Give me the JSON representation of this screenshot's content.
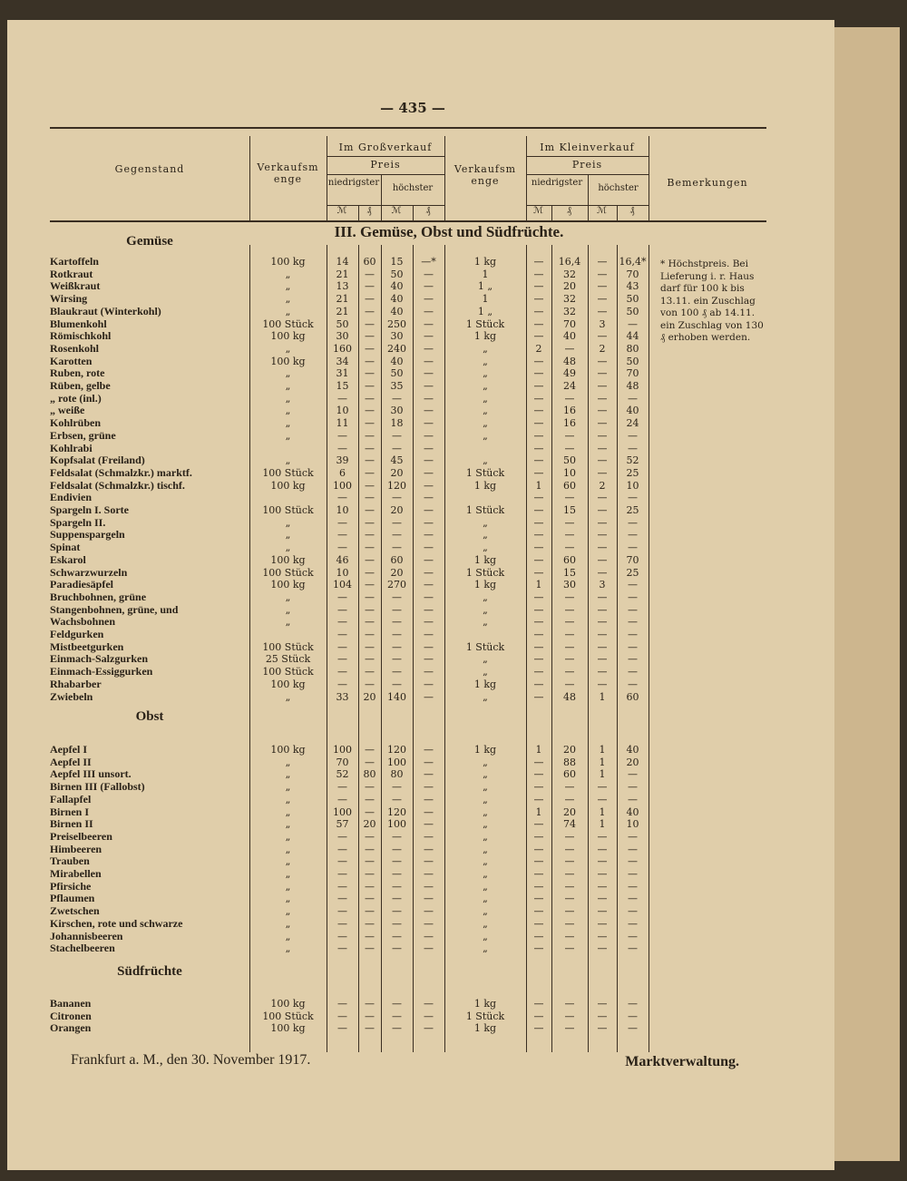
{
  "header": {
    "page_number": "— 435 —",
    "item": "Gegenstand",
    "quantity": "Verkaufsmenge",
    "wholesale": "Im Großverkauf",
    "retail": "Im Kleinverkauf",
    "price": "Preis",
    "lowest": "niedrigster",
    "highest": "höchster",
    "mk": "ℳ",
    "pf": "₰",
    "remarks": "Bemerkungen"
  },
  "title": "III. Gemüse, Obst und Südfrüchte.",
  "remarks": "* Höchstpreis. Bei Lieferung i. r. Haus darf für 100 k bis 13.11. ein Zuschlag von 100 ₰ ab 14.11. ein Zuschlag von 130 ₰ erhoben werden.",
  "sections": [
    {
      "title": "Gemüse",
      "rows": [
        {
          "name": "Kartoffeln",
          "cells": [
            "100 kg",
            "14",
            "60",
            "15",
            "—*",
            "1 kg",
            "—",
            "16,4",
            "—",
            "16,4*"
          ]
        },
        {
          "name": "Rotkraut",
          "cells": [
            "„",
            "21",
            "—",
            "50",
            "—",
            "1",
            "—",
            "32",
            "—",
            "70"
          ]
        },
        {
          "name": "Weißkraut",
          "cells": [
            "„",
            "13",
            "—",
            "40",
            "—",
            "1 „",
            "—",
            "20",
            "—",
            "43"
          ]
        },
        {
          "name": "Wirsing",
          "cells": [
            "„",
            "21",
            "—",
            "40",
            "—",
            "1",
            "—",
            "32",
            "—",
            "50"
          ]
        },
        {
          "name": "Blaukraut (Winterkohl)",
          "cells": [
            "„",
            "21",
            "—",
            "40",
            "—",
            "1 „",
            "—",
            "32",
            "—",
            "50"
          ]
        },
        {
          "name": "Blumenkohl",
          "cells": [
            "100 Stück",
            "50",
            "—",
            "250",
            "—",
            "1 Stück",
            "—",
            "70",
            "3",
            "—"
          ]
        },
        {
          "name": "Römischkohl",
          "cells": [
            "100 kg",
            "30",
            "—",
            "30",
            "—",
            "1 kg",
            "—",
            "40",
            "—",
            "44"
          ]
        },
        {
          "name": "Rosenkohl",
          "cells": [
            "„",
            "160",
            "—",
            "240",
            "—",
            "„",
            "2",
            "—",
            "2",
            "80"
          ]
        },
        {
          "name": "Karotten",
          "cells": [
            "100 kg",
            "34",
            "—",
            "40",
            "—",
            "„",
            "—",
            "48",
            "—",
            "50"
          ]
        },
        {
          "name": "Ruben, rote",
          "cells": [
            "„",
            "31",
            "—",
            "50",
            "—",
            "„",
            "—",
            "49",
            "—",
            "70"
          ]
        },
        {
          "name": "Rüben, gelbe",
          "cells": [
            "„",
            "15",
            "—",
            "35",
            "—",
            "„",
            "—",
            "24",
            "—",
            "48"
          ]
        },
        {
          "name": "„ rote (inl.)",
          "cells": [
            "„",
            "—",
            "—",
            "—",
            "—",
            "„",
            "—",
            "—",
            "—",
            "—"
          ]
        },
        {
          "name": "„ weiße",
          "cells": [
            "„",
            "10",
            "—",
            "30",
            "—",
            "„",
            "—",
            "16",
            "—",
            "40"
          ]
        },
        {
          "name": "Kohlrüben",
          "cells": [
            "„",
            "11",
            "—",
            "18",
            "—",
            "„",
            "—",
            "16",
            "—",
            "24"
          ]
        },
        {
          "name": "Erbsen, grüne",
          "cells": [
            "„",
            "—",
            "—",
            "—",
            "—",
            "„",
            "—",
            "—",
            "—",
            "—"
          ]
        },
        {
          "name": "Kohlrabi",
          "cells": [
            null,
            "—",
            "—",
            "—",
            "—",
            null,
            "—",
            "—",
            "—",
            "—"
          ]
        },
        {
          "name": "Kopfsalat (Freiland)",
          "cells": [
            "„",
            "39",
            "—",
            "45",
            "—",
            "„",
            "—",
            "50",
            "—",
            "52"
          ]
        },
        {
          "name": "Feldsalat (Schmalzkr.) marktf.",
          "cells": [
            "100 Stück",
            "6",
            "—",
            "20",
            "—",
            "1 Stück",
            "—",
            "10",
            "—",
            "25"
          ]
        },
        {
          "name": "Feldsalat (Schmalzkr.) tischf.",
          "cells": [
            "100 kg",
            "100",
            "—",
            "120",
            "—",
            "1 kg",
            "1",
            "60",
            "2",
            "10"
          ]
        },
        {
          "name": "Endivien",
          "cells": [
            null,
            "—",
            "—",
            "—",
            "—",
            null,
            "—",
            "—",
            "—",
            "—"
          ]
        },
        {
          "name": "Spargeln I. Sorte",
          "cells": [
            "100 Stück",
            "10",
            "—",
            "20",
            "—",
            "1 Stück",
            "—",
            "15",
            "—",
            "25"
          ]
        },
        {
          "name": "Spargeln II.",
          "cells": [
            "„",
            "—",
            "—",
            "—",
            "—",
            "„",
            "—",
            "—",
            "—",
            "—"
          ]
        },
        {
          "name": "Suppenspargeln",
          "cells": [
            "„",
            "—",
            "—",
            "—",
            "—",
            "„",
            "—",
            "—",
            "—",
            "—"
          ]
        },
        {
          "name": "Spinat",
          "cells": [
            "„",
            "—",
            "—",
            "—",
            "—",
            "„",
            "—",
            "—",
            "—",
            "—"
          ]
        },
        {
          "name": "Eskarol",
          "cells": [
            "100 kg",
            "46",
            "—",
            "60",
            "—",
            "1 kg",
            "—",
            "60",
            "—",
            "70"
          ]
        },
        {
          "name": "Schwarzwurzeln",
          "cells": [
            "100 Stück",
            "10",
            "—",
            "20",
            "—",
            "1 Stück",
            "—",
            "15",
            "—",
            "25"
          ]
        },
        {
          "name": "Paradiesäpfel",
          "cells": [
            "100 kg",
            "104",
            "—",
            "270",
            "—",
            "1 kg",
            "1",
            "30",
            "3",
            "—"
          ]
        },
        {
          "name": "Bruchbohnen, grüne",
          "cells": [
            "„",
            "—",
            "—",
            "—",
            "—",
            "„",
            "—",
            "—",
            "—",
            "—"
          ]
        },
        {
          "name": "Stangenbohnen, grüne, und",
          "cells": [
            "„",
            "—",
            "—",
            "—",
            "—",
            "„",
            "—",
            "—",
            "—",
            "—"
          ]
        },
        {
          "name": "Wachsbohnen",
          "cells": [
            "„",
            "—",
            "—",
            "—",
            "—",
            "„",
            "—",
            "—",
            "—",
            "—"
          ]
        },
        {
          "name": "Feldgurken",
          "cells": [
            null,
            "—",
            "—",
            "—",
            "—",
            null,
            "—",
            "—",
            "—",
            "—"
          ]
        },
        {
          "name": "Mistbeetgurken",
          "cells": [
            "100 Stück",
            "—",
            "—",
            "—",
            "—",
            "1 Stück",
            "—",
            "—",
            "—",
            "—"
          ]
        },
        {
          "name": "Einmach-Salzgurken",
          "cells": [
            "25 Stück",
            "—",
            "—",
            "—",
            "—",
            "„",
            "—",
            "—",
            "—",
            "—"
          ]
        },
        {
          "name": "Einmach-Essiggurken",
          "cells": [
            "100 Stück",
            "—",
            "—",
            "—",
            "—",
            "„",
            "—",
            "—",
            "—",
            "—"
          ]
        },
        {
          "name": "Rhabarber",
          "cells": [
            "100 kg",
            "—",
            "—",
            "—",
            "—",
            "1 kg",
            "—",
            "—",
            "—",
            "—"
          ]
        },
        {
          "name": "Zwiebeln",
          "cells": [
            "„",
            "33",
            "20",
            "140",
            "—",
            "„",
            "—",
            "48",
            "1",
            "60"
          ]
        }
      ]
    },
    {
      "title": "Obst",
      "rows": [
        {
          "name": "Aepfel I",
          "cells": [
            "100 kg",
            "100",
            "—",
            "120",
            "—",
            "1 kg",
            "1",
            "20",
            "1",
            "40"
          ]
        },
        {
          "name": "Aepfel II",
          "cells": [
            "„",
            "70",
            "—",
            "100",
            "—",
            "„",
            "—",
            "88",
            "1",
            "20"
          ]
        },
        {
          "name": "Aepfel III unsort.",
          "cells": [
            "„",
            "52",
            "80",
            "80",
            "—",
            "„",
            "—",
            "60",
            "1",
            "—"
          ]
        },
        {
          "name": "Birnen III (Fallobst)",
          "cells": [
            "„",
            "—",
            "—",
            "—",
            "—",
            "„",
            "—",
            "—",
            "—",
            "—"
          ]
        },
        {
          "name": "Fallapfel",
          "cells": [
            "„",
            "—",
            "—",
            "—",
            "—",
            "„",
            "—",
            "—",
            "—",
            "—"
          ]
        },
        {
          "name": "Birnen I",
          "cells": [
            "„",
            "100",
            "—",
            "120",
            "—",
            "„",
            "1",
            "20",
            "1",
            "40"
          ]
        },
        {
          "name": "Birnen II",
          "cells": [
            "„",
            "57",
            "20",
            "100",
            "—",
            "„",
            "—",
            "74",
            "1",
            "10"
          ]
        },
        {
          "name": "Preiselbeeren",
          "cells": [
            "„",
            "—",
            "—",
            "—",
            "—",
            "„",
            "—",
            "—",
            "—",
            "—"
          ]
        },
        {
          "name": "Himbeeren",
          "cells": [
            "„",
            "—",
            "—",
            "—",
            "—",
            "„",
            "—",
            "—",
            "—",
            "—"
          ]
        },
        {
          "name": "Trauben",
          "cells": [
            "„",
            "—",
            "—",
            "—",
            "—",
            "„",
            "—",
            "—",
            "—",
            "—"
          ]
        },
        {
          "name": "Mirabellen",
          "cells": [
            "„",
            "—",
            "—",
            "—",
            "—",
            "„",
            "—",
            "—",
            "—",
            "—"
          ]
        },
        {
          "name": "Pfirsiche",
          "cells": [
            "„",
            "—",
            "—",
            "—",
            "—",
            "„",
            "—",
            "—",
            "—",
            "—"
          ]
        },
        {
          "name": "Pflaumen",
          "cells": [
            "„",
            "—",
            "—",
            "—",
            "—",
            "„",
            "—",
            "—",
            "—",
            "—"
          ]
        },
        {
          "name": "Zwetschen",
          "cells": [
            "„",
            "—",
            "—",
            "—",
            "—",
            "„",
            "—",
            "—",
            "—",
            "—"
          ]
        },
        {
          "name": "Kirschen, rote und schwarze",
          "cells": [
            "„",
            "—",
            "—",
            "—",
            "—",
            "„",
            "—",
            "—",
            "—",
            "—"
          ]
        },
        {
          "name": "Johannisbeeren",
          "cells": [
            "„",
            "—",
            "—",
            "—",
            "—",
            "„",
            "—",
            "—",
            "—",
            "—"
          ]
        },
        {
          "name": "Stachelbeeren",
          "cells": [
            "„",
            "—",
            "—",
            "—",
            "—",
            "„",
            "—",
            "—",
            "—",
            "—"
          ]
        }
      ]
    },
    {
      "title": "Südfrüchte",
      "rows": [
        {
          "name": "Bananen",
          "cells": [
            "100 kg",
            "—",
            "—",
            "—",
            "—",
            "1 kg",
            "—",
            "—",
            "—",
            "—"
          ]
        },
        {
          "name": "Citronen",
          "cells": [
            "100 Stück",
            "—",
            "—",
            "—",
            "—",
            "1 Stück",
            "—",
            "—",
            "—",
            "—"
          ]
        },
        {
          "name": "Orangen",
          "cells": [
            "100 kg",
            "—",
            "—",
            "—",
            "—",
            "1 kg",
            "—",
            "—",
            "—",
            "—"
          ]
        }
      ]
    }
  ],
  "footer": {
    "place_date": "Frankfurt a. M., den 30. November 1917.",
    "signature": "Marktverwaltung."
  }
}
